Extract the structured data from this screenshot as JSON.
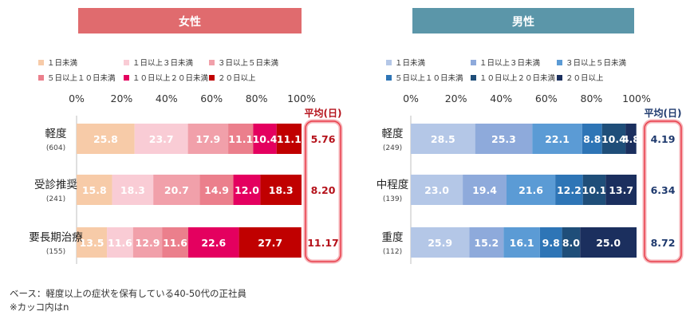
{
  "chart_data": [
    {
      "type": "bar",
      "orientation": "horizontal",
      "stacked": "percent",
      "title": "女性",
      "title_color": "#e06b6e",
      "categories": [
        {
          "label": "軽度",
          "n": "(604)"
        },
        {
          "label": "受診推奨",
          "n": "(241)"
        },
        {
          "label": "要長期治療",
          "n": "(155)"
        }
      ],
      "series": [
        {
          "name": "１日未満",
          "color": "#f7cba8",
          "values": [
            25.8,
            15.8,
            13.5
          ]
        },
        {
          "name": "１日以上３日未満",
          "color": "#f9ccd5",
          "values": [
            23.7,
            18.3,
            11.6
          ]
        },
        {
          "name": "３日以上５日未満",
          "color": "#f1a0aa",
          "values": [
            17.9,
            20.7,
            12.9
          ]
        },
        {
          "name": "５日以上１０日未満",
          "color": "#eb7f8c",
          "values": [
            11.1,
            14.9,
            11.6
          ]
        },
        {
          "name": "１０日以上２０日未満",
          "color": "#e4005f",
          "values": [
            10.4,
            12.0,
            22.6
          ]
        },
        {
          "name": "２０日以上",
          "color": "#c00000",
          "values": [
            11.1,
            18.3,
            27.7
          ]
        }
      ],
      "x_ticks": [
        "0%",
        "20%",
        "40%",
        "60%",
        "80%",
        "100%"
      ],
      "xlim": [
        0,
        100
      ],
      "average": {
        "label": "平均(日)",
        "values": [
          "5.76",
          "8.20",
          "11.17"
        ],
        "color": "#b5121b"
      }
    },
    {
      "type": "bar",
      "orientation": "horizontal",
      "stacked": "percent",
      "title": "男性",
      "title_color": "#5b96a9",
      "categories": [
        {
          "label": "軽度",
          "n": "(249)"
        },
        {
          "label": "中程度",
          "n": "(139)"
        },
        {
          "label": "重度",
          "n": "(112)"
        }
      ],
      "series": [
        {
          "name": "１日未満",
          "color": "#b4c7e7",
          "values": [
            28.5,
            23.0,
            25.9
          ]
        },
        {
          "name": "１日以上３日未満",
          "color": "#8eaadb",
          "values": [
            25.3,
            19.4,
            15.2
          ]
        },
        {
          "name": "３日以上５日未満",
          "color": "#5b9bd5",
          "values": [
            22.1,
            21.6,
            16.1
          ]
        },
        {
          "name": "５日以上１０日未満",
          "color": "#2e75b6",
          "values": [
            8.8,
            12.2,
            9.8
          ]
        },
        {
          "name": "１０日以上２０日未満",
          "color": "#1f4e79",
          "values": [
            10.4,
            10.1,
            8.0
          ]
        },
        {
          "name": "２０日以上",
          "color": "#1b2f5e",
          "values": [
            4.8,
            13.7,
            25.0
          ]
        }
      ],
      "x_ticks": [
        "0%",
        "20%",
        "40%",
        "60%",
        "80%",
        "100%"
      ],
      "xlim": [
        0,
        100
      ],
      "average": {
        "label": "平均(日)",
        "values": [
          "4.19",
          "6.34",
          "8.72"
        ],
        "color": "#1f3a6e"
      }
    }
  ],
  "footnote": {
    "line1": "ベース：軽度以上の症状を保有している40-50代の正社員",
    "line2": "※カッコ内はn"
  }
}
